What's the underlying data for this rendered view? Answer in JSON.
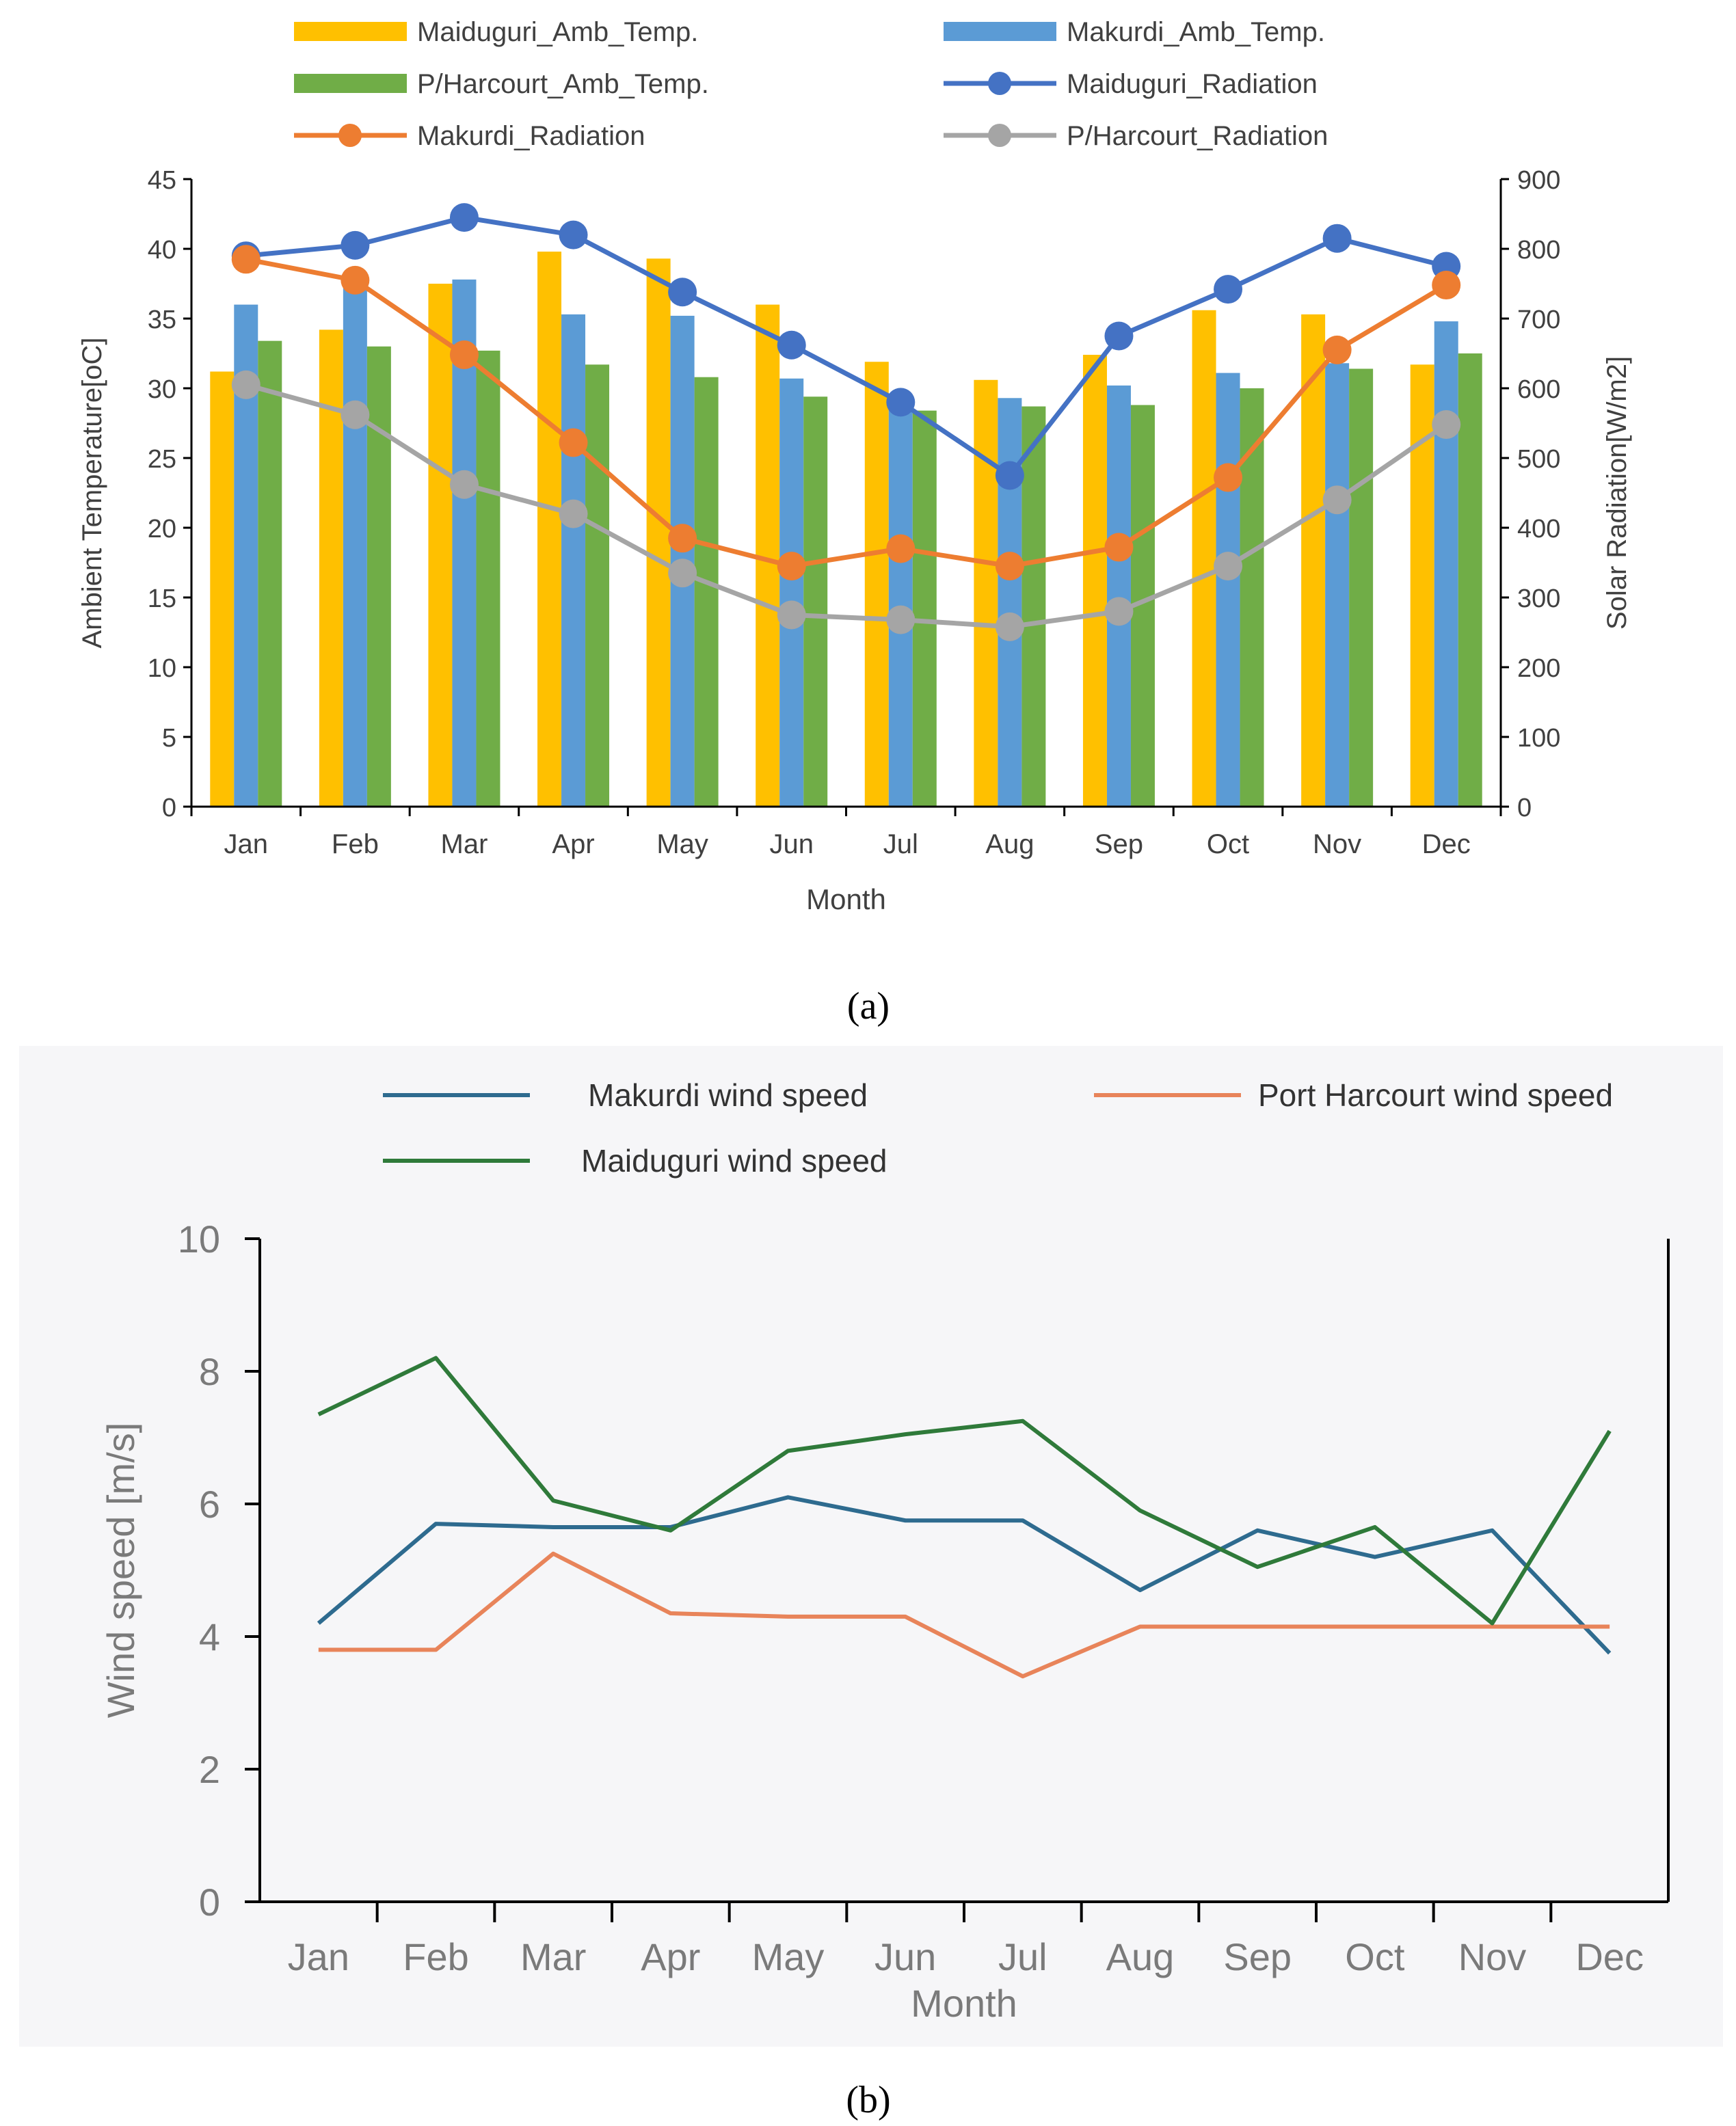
{
  "panels": {
    "a": "(a)",
    "b": "(b)"
  },
  "chart_data": [
    {
      "id": "a",
      "type": "bar+line",
      "xlabel": "Month",
      "ylabel": "Ambient Temperature[oC]",
      "y2label": "Solar Radiation[W/m2]",
      "ylim": [
        0,
        45
      ],
      "y2lim": [
        0,
        900
      ],
      "yticks": [
        "0",
        "5",
        "10",
        "15",
        "20",
        "25",
        "30",
        "35",
        "40",
        "45"
      ],
      "y2ticks": [
        "0",
        "100",
        "200",
        "300",
        "400",
        "500",
        "600",
        "700",
        "800",
        "900"
      ],
      "categories": [
        "Jan",
        "Feb",
        "Mar",
        "Apr",
        "May",
        "Jun",
        "Jul",
        "Aug",
        "Sep",
        "Oct",
        "Nov",
        "Dec"
      ],
      "bar_series": [
        {
          "name": "Maiduguri_Amb_Temp.",
          "color": "#FFC000",
          "values": [
            31.2,
            34.2,
            37.5,
            39.8,
            39.3,
            36.0,
            31.9,
            30.6,
            32.4,
            35.6,
            35.3,
            31.7
          ]
        },
        {
          "name": "Makurdi_Amb_Temp.",
          "color": "#5B9BD5",
          "values": [
            36.0,
            38.2,
            37.8,
            35.3,
            35.2,
            30.7,
            29.0,
            29.3,
            30.2,
            31.1,
            31.8,
            34.8
          ]
        },
        {
          "name": "P/Harcourt_Amb_Temp.",
          "color": "#70AD47",
          "values": [
            33.4,
            33.0,
            32.7,
            31.7,
            30.8,
            29.4,
            28.4,
            28.7,
            28.8,
            30.0,
            31.4,
            32.5
          ]
        }
      ],
      "line_series": [
        {
          "name": "Maiduguri_Radiation",
          "color": "#4472C4",
          "values": [
            790,
            805,
            845,
            820,
            738,
            662,
            580,
            475,
            675,
            742,
            815,
            775
          ]
        },
        {
          "name": "Makurdi_Radiation",
          "color": "#ED7D31",
          "values": [
            785,
            755,
            648,
            522,
            385,
            345,
            370,
            345,
            372,
            472,
            655,
            748
          ]
        },
        {
          "name": "P/Harcourt_Radiation",
          "color": "#A5A5A5",
          "values": [
            605,
            562,
            462,
            420,
            335,
            275,
            268,
            258,
            280,
            345,
            440,
            548
          ]
        }
      ]
    },
    {
      "id": "b",
      "type": "line",
      "xlabel": "Month",
      "ylabel": "Wind speed [m/s]",
      "ylim": [
        0,
        10
      ],
      "yticks": [
        "0",
        "2",
        "4",
        "6",
        "8",
        "10"
      ],
      "categories": [
        "Jan",
        "Feb",
        "Mar",
        "Apr",
        "May",
        "Jun",
        "Jul",
        "Aug",
        "Sep",
        "Oct",
        "Nov",
        "Dec"
      ],
      "series": [
        {
          "name": "Makurdi wind speed",
          "color": "#2E6B8F",
          "values": [
            4.2,
            5.7,
            5.65,
            5.65,
            6.1,
            5.75,
            5.75,
            4.7,
            5.6,
            5.2,
            5.6,
            3.75
          ]
        },
        {
          "name": "Port Harcourt wind speed",
          "color": "#E8845A",
          "values": [
            3.8,
            3.8,
            5.25,
            4.35,
            4.3,
            4.3,
            3.4,
            4.15,
            4.15,
            4.15,
            4.15,
            4.15
          ]
        },
        {
          "name": "Maiduguri wind speed",
          "color": "#2F7A3A",
          "values": [
            7.35,
            8.2,
            6.05,
            5.6,
            6.8,
            7.05,
            7.25,
            5.9,
            5.05,
            5.65,
            4.2,
            7.1
          ]
        }
      ]
    }
  ]
}
